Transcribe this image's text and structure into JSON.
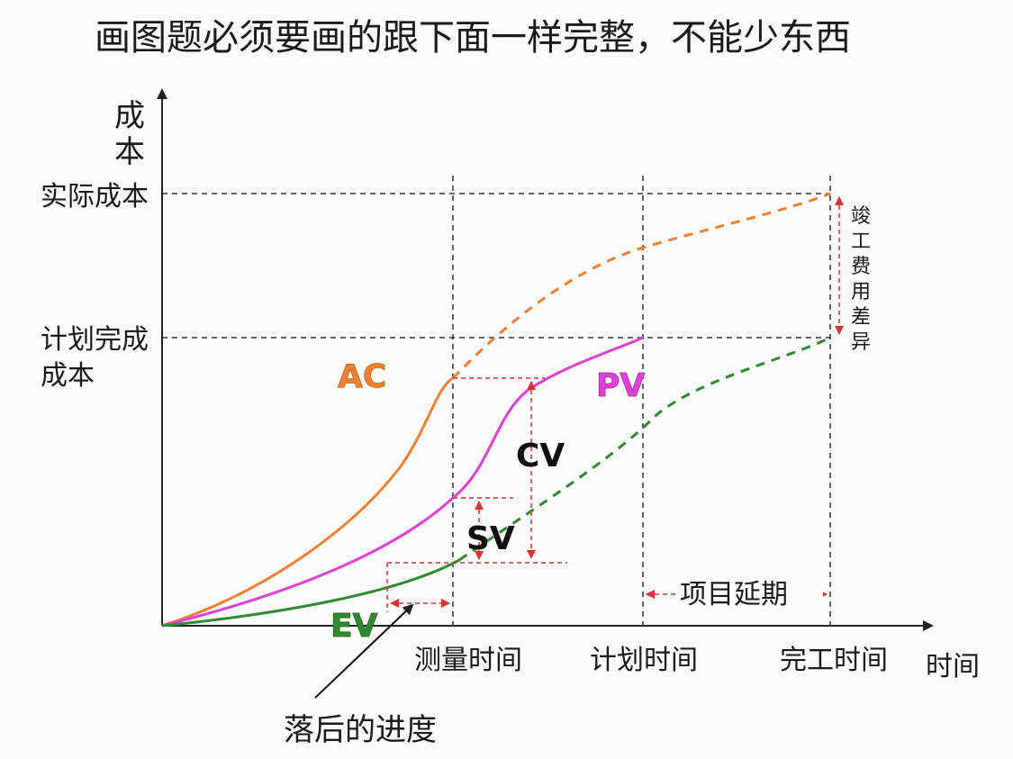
{
  "title": "画图题必须要画的跟下面一样完整，不能少东西",
  "y_axis": {
    "label_line1": "成",
    "label_line2": "本"
  },
  "x_axis": {
    "label": "时间"
  },
  "y_ticks": {
    "actual_cost": "实际成本",
    "planned_cost_line1": "计划完成",
    "planned_cost_line2": "成本"
  },
  "x_ticks": {
    "measure_time": "测量时间",
    "plan_time": "计划时间",
    "finish_time": "完工时间"
  },
  "curves": {
    "ac": {
      "label": "AC",
      "color": "#f08030"
    },
    "pv": {
      "label": "PV",
      "color": "#e040d8"
    },
    "ev": {
      "label": "EV",
      "color": "#2e8b2e"
    }
  },
  "annotations": {
    "cv": "CV",
    "sv": "SV",
    "delay": "项目延期",
    "lag": "落后的进度",
    "cost_diff_chars": [
      "竣",
      "工",
      "费",
      "用",
      "差",
      "异"
    ]
  },
  "colors": {
    "guide": "#e03030",
    "dashed_ref": "#333333",
    "axis": "#222222"
  }
}
